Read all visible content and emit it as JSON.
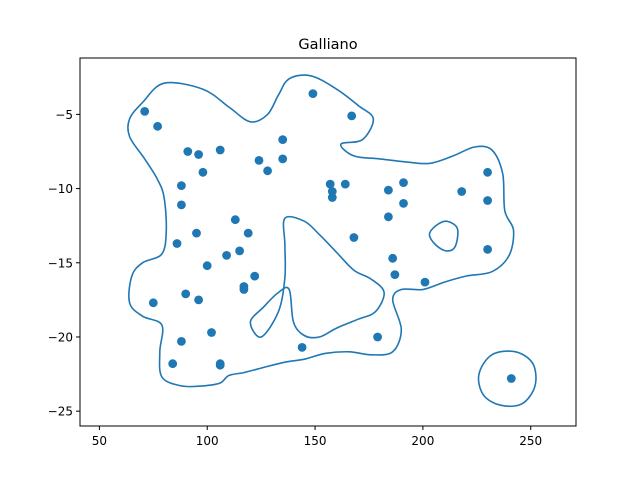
{
  "chart_data": {
    "type": "scatter",
    "title": "Galliano",
    "xlabel": "",
    "ylabel": "",
    "xlim": [
      41,
      271
    ],
    "ylim": [
      -26,
      -1.2
    ],
    "xticks": [
      50,
      100,
      150,
      200,
      250
    ],
    "yticks": [
      -25,
      -20,
      -15,
      -10,
      -5
    ],
    "xtick_labels": [
      "50",
      "100",
      "150",
      "200",
      "250"
    ],
    "ytick_labels": [
      "−25",
      "−20",
      "−15",
      "−10",
      "−5"
    ],
    "grid": false,
    "point_color": "#1f77b4",
    "contour_color": "#1f77b4",
    "points": [
      {
        "x": 71,
        "y": -4.8
      },
      {
        "x": 77,
        "y": -5.8
      },
      {
        "x": 149,
        "y": -3.6
      },
      {
        "x": 167,
        "y": -5.1
      },
      {
        "x": 91,
        "y": -7.5
      },
      {
        "x": 96,
        "y": -7.7
      },
      {
        "x": 106,
        "y": -7.4
      },
      {
        "x": 98,
        "y": -8.9
      },
      {
        "x": 135,
        "y": -6.7
      },
      {
        "x": 124,
        "y": -8.1
      },
      {
        "x": 135,
        "y": -8.0
      },
      {
        "x": 128,
        "y": -8.8
      },
      {
        "x": 88,
        "y": -9.8
      },
      {
        "x": 88,
        "y": -11.1
      },
      {
        "x": 113,
        "y": -12.1
      },
      {
        "x": 95,
        "y": -13.0
      },
      {
        "x": 86,
        "y": -13.7
      },
      {
        "x": 119,
        "y": -13.0
      },
      {
        "x": 115,
        "y": -14.2
      },
      {
        "x": 109,
        "y": -14.5
      },
      {
        "x": 100,
        "y": -15.2
      },
      {
        "x": 122,
        "y": -15.9
      },
      {
        "x": 117,
        "y": -16.6
      },
      {
        "x": 117,
        "y": -16.8
      },
      {
        "x": 90,
        "y": -17.1
      },
      {
        "x": 96,
        "y": -17.5
      },
      {
        "x": 75,
        "y": -17.7
      },
      {
        "x": 102,
        "y": -19.7
      },
      {
        "x": 88,
        "y": -20.3
      },
      {
        "x": 144,
        "y": -20.7
      },
      {
        "x": 84,
        "y": -21.8
      },
      {
        "x": 106,
        "y": -21.8
      },
      {
        "x": 106,
        "y": -21.9
      },
      {
        "x": 179,
        "y": -20.0
      },
      {
        "x": 157,
        "y": -9.7
      },
      {
        "x": 158,
        "y": -10.2
      },
      {
        "x": 158,
        "y": -10.6
      },
      {
        "x": 164,
        "y": -9.7
      },
      {
        "x": 168,
        "y": -13.3
      },
      {
        "x": 184,
        "y": -10.1
      },
      {
        "x": 191,
        "y": -9.6
      },
      {
        "x": 191,
        "y": -11.0
      },
      {
        "x": 184,
        "y": -11.9
      },
      {
        "x": 186,
        "y": -14.7
      },
      {
        "x": 187,
        "y": -15.8
      },
      {
        "x": 201,
        "y": -16.3
      },
      {
        "x": 218,
        "y": -10.2
      },
      {
        "x": 230,
        "y": -8.9
      },
      {
        "x": 230,
        "y": -10.8
      },
      {
        "x": 230,
        "y": -14.1
      },
      {
        "x": 241,
        "y": -22.8
      }
    ],
    "contours": [
      {
        "name": "main-outline",
        "closed": true,
        "points": [
          [
            70,
            -4.2
          ],
          [
            80,
            -2.9
          ],
          [
            98,
            -3.3
          ],
          [
            110,
            -4.5
          ],
          [
            120,
            -5.5
          ],
          [
            128,
            -5.0
          ],
          [
            133,
            -3.7
          ],
          [
            138,
            -2.6
          ],
          [
            148,
            -2.4
          ],
          [
            160,
            -3.3
          ],
          [
            170,
            -4.4
          ],
          [
            177,
            -5.3
          ],
          [
            172,
            -6.7
          ],
          [
            162,
            -7.0
          ],
          [
            168,
            -7.8
          ],
          [
            180,
            -8.0
          ],
          [
            192,
            -8.2
          ],
          [
            203,
            -8.3
          ],
          [
            214,
            -7.8
          ],
          [
            224,
            -7.2
          ],
          [
            232,
            -7.4
          ],
          [
            237,
            -9.0
          ],
          [
            238,
            -11.5
          ],
          [
            242,
            -12.8
          ],
          [
            240,
            -14.5
          ],
          [
            232,
            -15.6
          ],
          [
            220,
            -15.9
          ],
          [
            210,
            -16.3
          ],
          [
            200,
            -16.8
          ],
          [
            190,
            -16.8
          ],
          [
            186,
            -17.5
          ],
          [
            190,
            -19.5
          ],
          [
            186,
            -21.0
          ],
          [
            176,
            -21.2
          ],
          [
            166,
            -21.0
          ],
          [
            155,
            -21.1
          ],
          [
            145,
            -21.5
          ],
          [
            136,
            -21.7
          ],
          [
            125,
            -22.1
          ],
          [
            117,
            -22.4
          ],
          [
            110,
            -22.6
          ],
          [
            106,
            -23.1
          ],
          [
            98,
            -23.3
          ],
          [
            88,
            -23.3
          ],
          [
            79,
            -22.7
          ],
          [
            78,
            -21.0
          ],
          [
            79,
            -19.2
          ],
          [
            70,
            -18.6
          ],
          [
            64,
            -17.7
          ],
          [
            65,
            -15.9
          ],
          [
            70,
            -15.0
          ],
          [
            79,
            -14.4
          ],
          [
            81,
            -12.8
          ],
          [
            80,
            -10.6
          ],
          [
            77,
            -9.4
          ],
          [
            71,
            -8.0
          ],
          [
            64,
            -6.5
          ],
          [
            64,
            -5.3
          ]
        ]
      },
      {
        "name": "inner-hole",
        "closed": true,
        "points": [
          [
            136,
            -12.0
          ],
          [
            145,
            -12.2
          ],
          [
            152,
            -13.1
          ],
          [
            160,
            -14.3
          ],
          [
            168,
            -15.5
          ],
          [
            176,
            -16.1
          ],
          [
            182,
            -17.0
          ],
          [
            178,
            -18.3
          ],
          [
            170,
            -18.8
          ],
          [
            160,
            -19.4
          ],
          [
            152,
            -20.0
          ],
          [
            145,
            -19.9
          ],
          [
            140,
            -19.0
          ],
          [
            138,
            -16.8
          ],
          [
            133,
            -17.0
          ],
          [
            126,
            -18.0
          ],
          [
            120,
            -19.0
          ],
          [
            125,
            -20.0
          ],
          [
            133,
            -18.3
          ],
          [
            136,
            -16.0
          ],
          [
            136,
            -13.8
          ]
        ]
      },
      {
        "name": "small-hole",
        "closed": true,
        "points": [
          [
            206,
            -12.5
          ],
          [
            211,
            -12.2
          ],
          [
            216,
            -12.7
          ],
          [
            215,
            -13.9
          ],
          [
            211,
            -14.2
          ],
          [
            206,
            -13.8
          ],
          [
            203,
            -13.1
          ]
        ]
      },
      {
        "name": "outlier-loop",
        "closed": true,
        "points": [
          [
            232,
            -21.2
          ],
          [
            243,
            -21.0
          ],
          [
            251,
            -21.8
          ],
          [
            252,
            -23.3
          ],
          [
            246,
            -24.5
          ],
          [
            236,
            -24.6
          ],
          [
            228,
            -23.9
          ],
          [
            226,
            -22.5
          ]
        ]
      }
    ]
  }
}
